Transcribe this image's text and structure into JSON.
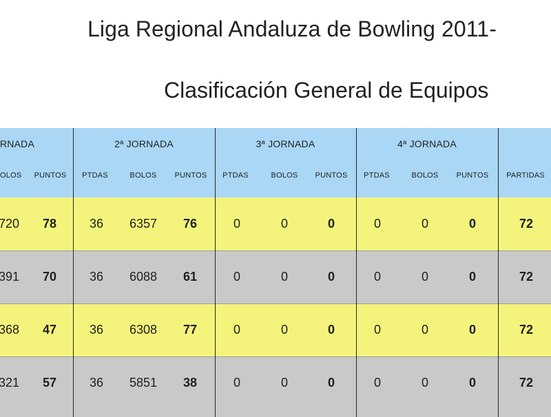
{
  "title": "Liga Regional Andaluza de Bowling 2011-",
  "subtitle": "Clasificación General de Equipos",
  "groups": {
    "g1": "RNADA",
    "g2": "2ª JORNADA",
    "g3": "3ª JORNADA",
    "g4": "4ª JORNADA"
  },
  "subheaders": {
    "g1": [
      "OLOS",
      "PUNTOS"
    ],
    "g2": [
      "PTDAS",
      "BOLOS",
      "PUNTOS"
    ],
    "g3": [
      "PTDAS",
      "BOLOS",
      "PUNTOS"
    ],
    "g4": [
      "PTDAS",
      "BOLOS",
      "PUNTOS"
    ],
    "total": "PARTIDAS"
  },
  "rows": [
    {
      "j1_bolos": "720",
      "j1_puntos": "78",
      "j2_ptdas": "36",
      "j2_bolos": "6357",
      "j2_puntos": "76",
      "j3_ptdas": "0",
      "j3_bolos": "0",
      "j3_puntos": "0",
      "j4_ptdas": "0",
      "j4_bolos": "0",
      "j4_puntos": "0",
      "partidas": "72"
    },
    {
      "j1_bolos": "391",
      "j1_puntos": "70",
      "j2_ptdas": "36",
      "j2_bolos": "6088",
      "j2_puntos": "61",
      "j3_ptdas": "0",
      "j3_bolos": "0",
      "j3_puntos": "0",
      "j4_ptdas": "0",
      "j4_bolos": "0",
      "j4_puntos": "0",
      "partidas": "72"
    },
    {
      "j1_bolos": "368",
      "j1_puntos": "47",
      "j2_ptdas": "36",
      "j2_bolos": "6308",
      "j2_puntos": "77",
      "j3_ptdas": "0",
      "j3_bolos": "0",
      "j3_puntos": "0",
      "j4_ptdas": "0",
      "j4_bolos": "0",
      "j4_puntos": "0",
      "partidas": "72"
    },
    {
      "j1_bolos": "321",
      "j1_puntos": "57",
      "j2_ptdas": "36",
      "j2_bolos": "5851",
      "j2_puntos": "38",
      "j3_ptdas": "0",
      "j3_bolos": "0",
      "j3_puntos": "0",
      "j4_ptdas": "0",
      "j4_bolos": "0",
      "j4_puntos": "0",
      "partidas": "72"
    }
  ],
  "colors": {
    "header": "#a9d7f5",
    "row_yellow": "#f4f47c",
    "row_gray": "#c9c9c9"
  }
}
